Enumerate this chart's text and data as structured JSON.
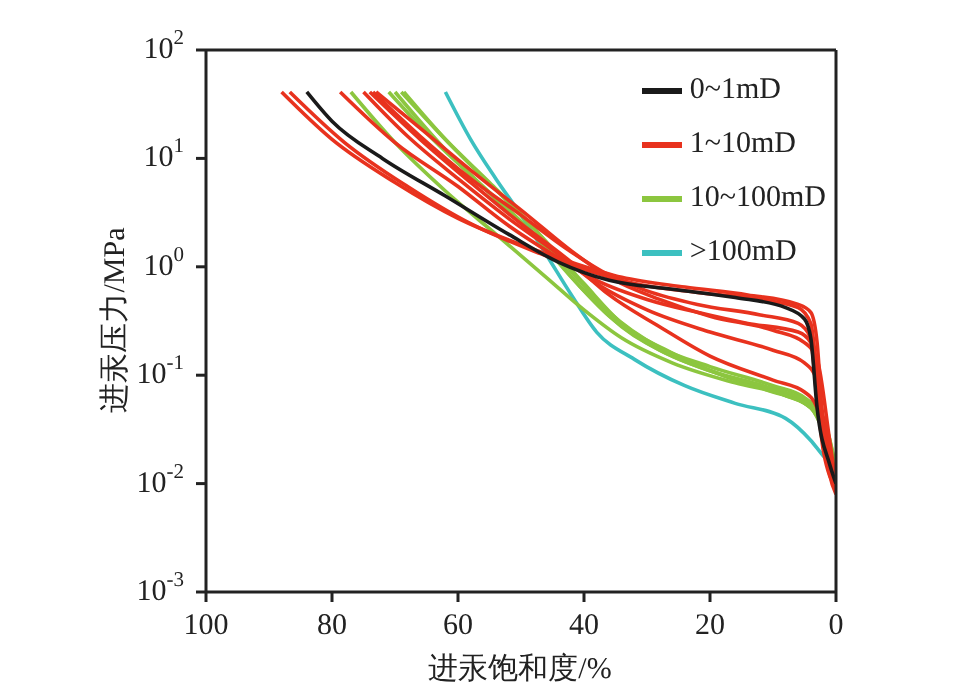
{
  "chart_data": {
    "type": "line",
    "xlabel": "进汞饱和度/%",
    "ylabel": "进汞压力/MPa",
    "log": "y",
    "marker": "none",
    "line_style": "solid",
    "legend": "top right",
    "xlim": [
      100,
      0
    ],
    "xticks": [
      100,
      80,
      60,
      40,
      20,
      0
    ],
    "ylim": [
      0.001,
      100
    ],
    "yticks": [
      {
        "value": 0.001,
        "label": "10$^{-3}$"
      },
      {
        "value": 0.01,
        "label": "10$^{-2}$"
      },
      {
        "value": 0.1,
        "label": "10$^{-1}$"
      },
      {
        "value": 1,
        "label": "10$^{0}$"
      },
      {
        "value": 10,
        "label": "10$^{1}$"
      },
      {
        "value": 100,
        "label": "10$^{2}$"
      }
    ],
    "series": [
      {
        "name": "0~1mD",
        "color": "#1a1a1a",
        "x": [
          84,
          80,
          72,
          62,
          52,
          44,
          36,
          26,
          16,
          8,
          5,
          4,
          3,
          1,
          0
        ],
        "values": [
          41,
          22,
          10,
          4.5,
          2,
          1.1,
          0.75,
          0.62,
          0.52,
          0.42,
          0.33,
          0.22,
          0.05,
          0.015,
          0.01
        ]
      },
      {
        "name": "1~10mD",
        "color": "#e8321e",
        "x": [
          88,
          80,
          70,
          60,
          50,
          42,
          34,
          24,
          14,
          6,
          4,
          3,
          2,
          1,
          0
        ],
        "values": [
          41,
          15,
          6,
          2.8,
          1.6,
          1.1,
          0.8,
          0.65,
          0.55,
          0.45,
          0.38,
          0.2,
          0.03,
          0.012,
          0.008
        ]
      },
      {
        "color": "#e8321e",
        "x": [
          86.7,
          78,
          68,
          58,
          48,
          40,
          32,
          22,
          12,
          6,
          4,
          3,
          2,
          0
        ],
        "values": [
          41,
          14,
          5.5,
          2.5,
          1.4,
          0.95,
          0.7,
          0.58,
          0.5,
          0.42,
          0.3,
          0.1,
          0.025,
          0.01
        ]
      },
      {
        "color": "#e8321e",
        "x": [
          78.7,
          70,
          60,
          52,
          44,
          38,
          30,
          22,
          14,
          6,
          4,
          3,
          1,
          0
        ],
        "values": [
          41,
          14,
          5.5,
          2.4,
          1.2,
          0.75,
          0.5,
          0.38,
          0.3,
          0.25,
          0.2,
          0.06,
          0.015,
          0.01
        ]
      },
      {
        "color": "#e8321e",
        "x": [
          75,
          68,
          60,
          52,
          44,
          38,
          30,
          20,
          10,
          5,
          3,
          2,
          0
        ],
        "values": [
          41,
          16,
          6.5,
          2.8,
          1.3,
          0.7,
          0.4,
          0.25,
          0.17,
          0.13,
          0.09,
          0.03,
          0.012
        ]
      },
      {
        "color": "#e8321e",
        "x": [
          74,
          66,
          58,
          50,
          42,
          36,
          28,
          20,
          10,
          5,
          3,
          2,
          0
        ],
        "values": [
          41,
          15,
          6,
          2.5,
          1.1,
          0.55,
          0.28,
          0.15,
          0.09,
          0.07,
          0.05,
          0.02,
          0.009
        ]
      },
      {
        "color": "#e8321e",
        "x": [
          73,
          65,
          57,
          49,
          42,
          36,
          28,
          20,
          10,
          5,
          3,
          1,
          0
        ],
        "values": [
          41,
          17,
          7,
          3,
          1.4,
          0.8,
          0.5,
          0.35,
          0.26,
          0.2,
          0.14,
          0.025,
          0.01
        ]
      },
      {
        "color": "#e8321e",
        "x": [
          73.5,
          66,
          58,
          50,
          43,
          37,
          30,
          22,
          12,
          6,
          4,
          2,
          0
        ],
        "values": [
          41,
          16,
          6.5,
          3,
          1.5,
          0.9,
          0.6,
          0.45,
          0.36,
          0.3,
          0.22,
          0.04,
          0.011
        ]
      },
      {
        "name": "10~100mD",
        "color": "#8cc63f",
        "x": [
          77,
          70,
          62,
          54,
          46,
          40,
          34,
          26,
          16,
          8,
          4,
          2,
          0
        ],
        "values": [
          41,
          14,
          5,
          2,
          0.8,
          0.4,
          0.22,
          0.13,
          0.085,
          0.065,
          0.05,
          0.03,
          0.012
        ]
      },
      {
        "color": "#8cc63f",
        "x": [
          71,
          64,
          56,
          48,
          42,
          36,
          28,
          20,
          10,
          5,
          2,
          0
        ],
        "values": [
          41,
          15,
          5.5,
          2,
          0.8,
          0.35,
          0.17,
          0.11,
          0.075,
          0.058,
          0.04,
          0.013
        ]
      },
      {
        "color": "#8cc63f",
        "x": [
          68.6,
          62,
          55,
          48,
          42,
          36,
          28,
          20,
          10,
          5,
          2,
          0
        ],
        "values": [
          41,
          15,
          6,
          2.3,
          0.9,
          0.38,
          0.18,
          0.12,
          0.08,
          0.062,
          0.04,
          0.014
        ]
      },
      {
        "color": "#8cc63f",
        "x": [
          70,
          62,
          54,
          46,
          40,
          34,
          26,
          18,
          10,
          5,
          2,
          0
        ],
        "values": [
          41,
          12,
          4.2,
          1.5,
          0.6,
          0.28,
          0.15,
          0.1,
          0.07,
          0.055,
          0.035,
          0.012
        ]
      },
      {
        "color": "#8cc63f",
        "x": [
          69,
          61,
          53,
          46,
          40,
          34,
          26,
          18,
          8,
          4,
          2,
          0
        ],
        "values": [
          41,
          13,
          4.5,
          1.7,
          0.7,
          0.3,
          0.16,
          0.1,
          0.065,
          0.05,
          0.03,
          0.011
        ]
      },
      {
        "name": ">100mD",
        "color": "#3cc0c0",
        "x": [
          62,
          58,
          54,
          50,
          46,
          42,
          38,
          32,
          24,
          16,
          8,
          4,
          2,
          0
        ],
        "values": [
          41,
          15,
          6.5,
          3,
          1.3,
          0.55,
          0.25,
          0.14,
          0.08,
          0.055,
          0.04,
          0.025,
          0.018,
          0.014
        ]
      }
    ]
  }
}
